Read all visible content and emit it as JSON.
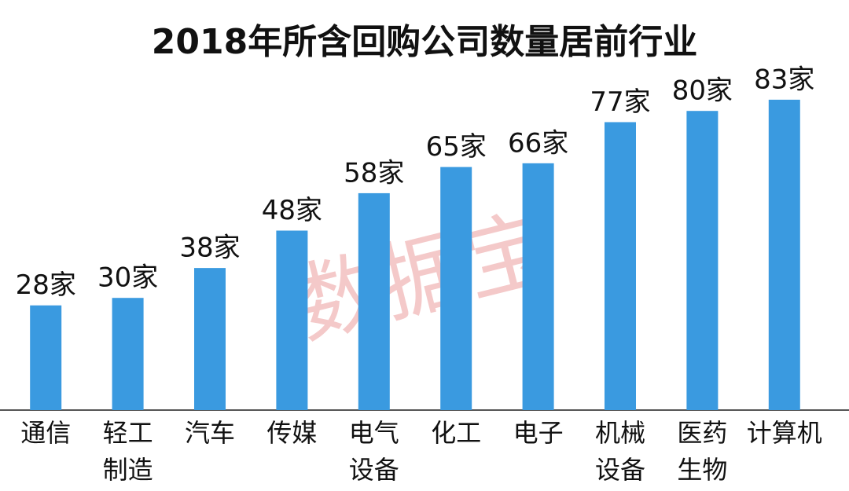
{
  "chart_data": {
    "type": "bar",
    "title": "2018年所含回购公司数量居前行业",
    "watermark": "数据宝",
    "categories": [
      "通信",
      "轻工制造",
      "汽车",
      "传媒",
      "电气设备",
      "化工",
      "电子",
      "机械设备",
      "医药生物",
      "计算机"
    ],
    "values": [
      28,
      30,
      38,
      48,
      58,
      65,
      66,
      77,
      80,
      83
    ],
    "value_labels": [
      "28家",
      "30家",
      "38家",
      "48家",
      "58家",
      "65家",
      "66家",
      "77家",
      "80家",
      "83家"
    ],
    "color": "#3a9ae0",
    "ylim": [
      0,
      100
    ]
  }
}
